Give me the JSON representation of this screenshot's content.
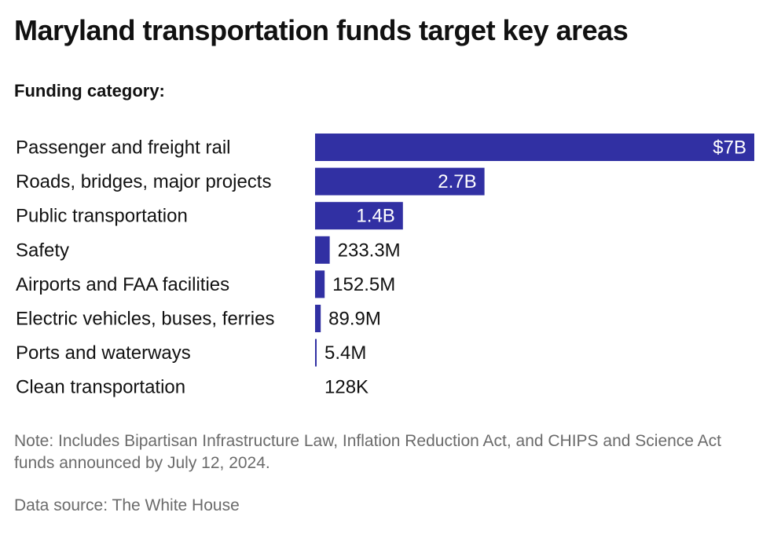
{
  "title": "Maryland transportation funds target key areas",
  "subtitle": "Funding category:",
  "note": "Note: Includes Bipartisan Infrastructure Law, Inflation Reduction Act, and CHIPS and Science Act funds announced by July 12, 2024.",
  "source": "Data source: The White House",
  "colors": {
    "bar": "#3130a3",
    "label_inside": "#ffffff",
    "label_outside": "#111111",
    "text": "#111111",
    "muted": "#6b6b6b"
  },
  "chart_data": {
    "type": "bar",
    "orientation": "horizontal",
    "categories": [
      "Passenger and freight rail",
      "Roads, bridges, major projects",
      "Public transportation",
      "Safety",
      "Airports and FAA facilities",
      "Electric vehicles, buses, ferries",
      "Ports and waterways",
      "Clean transportation"
    ],
    "values": [
      7000000000,
      2700000000,
      1400000000,
      233300000,
      152500000,
      89900000,
      5400000,
      128000
    ],
    "value_labels": [
      "$7B",
      "2.7B",
      "1.4B",
      "233.3M",
      "152.5M",
      "89.9M",
      "5.4M",
      "128K"
    ],
    "xlim": [
      0,
      7000000000
    ],
    "grid": false,
    "legend": "none"
  }
}
